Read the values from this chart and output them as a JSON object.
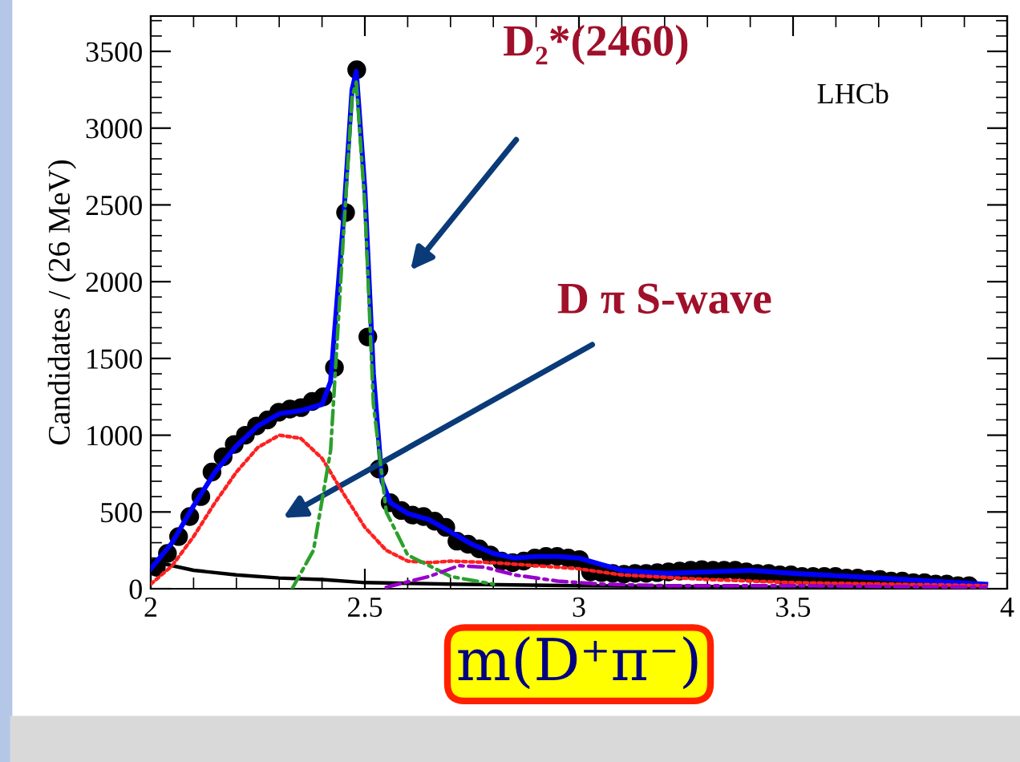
{
  "chart_data": {
    "type": "line",
    "xlabel": "m(D⁺π⁻)",
    "ylabel": "Candidates / (26 MeV)",
    "xlim": [
      2,
      4
    ],
    "ylim": [
      0,
      3730
    ],
    "xticks": [
      2,
      2.5,
      3,
      3.5,
      4
    ],
    "yticks": [
      0,
      500,
      1000,
      1500,
      2000,
      2500,
      3000,
      3500
    ],
    "grid": false,
    "annotations": [
      "D₂*(2460)",
      "D π S-wave",
      "LHCb"
    ],
    "series": [
      {
        "color": "#000000",
        "line_style": "solid",
        "marker": "none",
        "x": [
          2.0,
          2.1,
          2.2,
          2.3,
          2.4,
          2.5,
          2.7,
          3.0,
          3.5,
          3.95
        ],
        "values": [
          180,
          120,
          90,
          70,
          60,
          40,
          30,
          20,
          10,
          0
        ]
      },
      {
        "color": "#ff2020",
        "line_style": "dotted",
        "marker": "none",
        "x": [
          2.0,
          2.05,
          2.1,
          2.15,
          2.2,
          2.25,
          2.3,
          2.35,
          2.4,
          2.45,
          2.5,
          2.55,
          2.6,
          2.65,
          2.7,
          2.8,
          2.9,
          3.0,
          3.1,
          3.3,
          3.5,
          3.95
        ],
        "values": [
          30,
          150,
          340,
          560,
          760,
          920,
          1000,
          980,
          850,
          620,
          400,
          250,
          180,
          170,
          180,
          170,
          150,
          130,
          90,
          60,
          40,
          20
        ]
      },
      {
        "color": "#2ca02c",
        "line_style": "dashed",
        "marker": "none",
        "x": [
          2.33,
          2.38,
          2.42,
          2.45,
          2.47,
          2.48,
          2.5,
          2.52,
          2.55,
          2.6,
          2.7,
          2.8
        ],
        "values": [
          0,
          250,
          900,
          2300,
          3200,
          3300,
          2500,
          1200,
          500,
          220,
          80,
          30
        ]
      },
      {
        "color": "#9900cc",
        "line_style": "dashed",
        "marker": "none",
        "x": [
          2.55,
          2.65,
          2.72,
          2.78,
          2.85,
          2.95,
          3.05,
          3.2,
          3.5,
          3.95
        ],
        "values": [
          10,
          80,
          150,
          140,
          90,
          50,
          30,
          20,
          20,
          10
        ]
      },
      {
        "color": "#0000ff",
        "line_style": "solid",
        "marker": "none",
        "x": [
          2.0,
          2.05,
          2.1,
          2.15,
          2.2,
          2.25,
          2.3,
          2.35,
          2.4,
          2.42,
          2.45,
          2.47,
          2.48,
          2.5,
          2.52,
          2.54,
          2.56,
          2.6,
          2.65,
          2.7,
          2.75,
          2.8,
          2.85,
          2.9,
          2.95,
          3.0,
          3.05,
          3.1,
          3.2,
          3.3,
          3.4,
          3.5,
          3.7,
          3.95
        ],
        "values": [
          130,
          300,
          540,
          760,
          930,
          1060,
          1140,
          1160,
          1200,
          1350,
          2400,
          3250,
          3370,
          2600,
          1400,
          700,
          560,
          490,
          450,
          370,
          290,
          230,
          200,
          210,
          210,
          200,
          160,
          120,
          100,
          110,
          120,
          100,
          70,
          30
        ]
      },
      {
        "type": "scatter",
        "color": "#000000",
        "marker": "circle",
        "x": [
          2.013,
          2.039,
          2.065,
          2.091,
          2.117,
          2.143,
          2.169,
          2.195,
          2.221,
          2.247,
          2.273,
          2.299,
          2.325,
          2.351,
          2.377,
          2.403,
          2.429,
          2.455,
          2.481,
          2.507,
          2.533,
          2.559,
          2.585,
          2.611,
          2.637,
          2.663,
          2.689,
          2.715,
          2.741,
          2.767,
          2.793,
          2.819,
          2.845,
          2.871,
          2.897,
          2.923,
          2.949,
          2.975,
          3.001,
          3.027,
          3.053,
          3.079,
          3.105,
          3.131,
          3.157,
          3.183,
          3.209,
          3.235,
          3.261,
          3.287,
          3.313,
          3.339,
          3.365,
          3.391,
          3.417,
          3.443,
          3.469,
          3.495,
          3.521,
          3.547,
          3.573,
          3.599,
          3.625,
          3.651,
          3.677,
          3.703,
          3.729,
          3.755,
          3.781,
          3.807,
          3.833,
          3.859,
          3.885,
          3.911
        ],
        "values": [
          140,
          230,
          340,
          470,
          600,
          760,
          860,
          940,
          1000,
          1060,
          1100,
          1150,
          1170,
          1180,
          1220,
          1250,
          1440,
          2450,
          3380,
          1640,
          780,
          560,
          510,
          480,
          470,
          440,
          400,
          310,
          290,
          260,
          220,
          180,
          170,
          180,
          200,
          210,
          210,
          200,
          190,
          110,
          105,
          100,
          95,
          100,
          100,
          105,
          110,
          115,
          120,
          125,
          120,
          120,
          120,
          110,
          100,
          100,
          90,
          90,
          80,
          80,
          80,
          80,
          70,
          70,
          60,
          60,
          50,
          50,
          40,
          40,
          30,
          30,
          20,
          20
        ]
      }
    ]
  }
}
